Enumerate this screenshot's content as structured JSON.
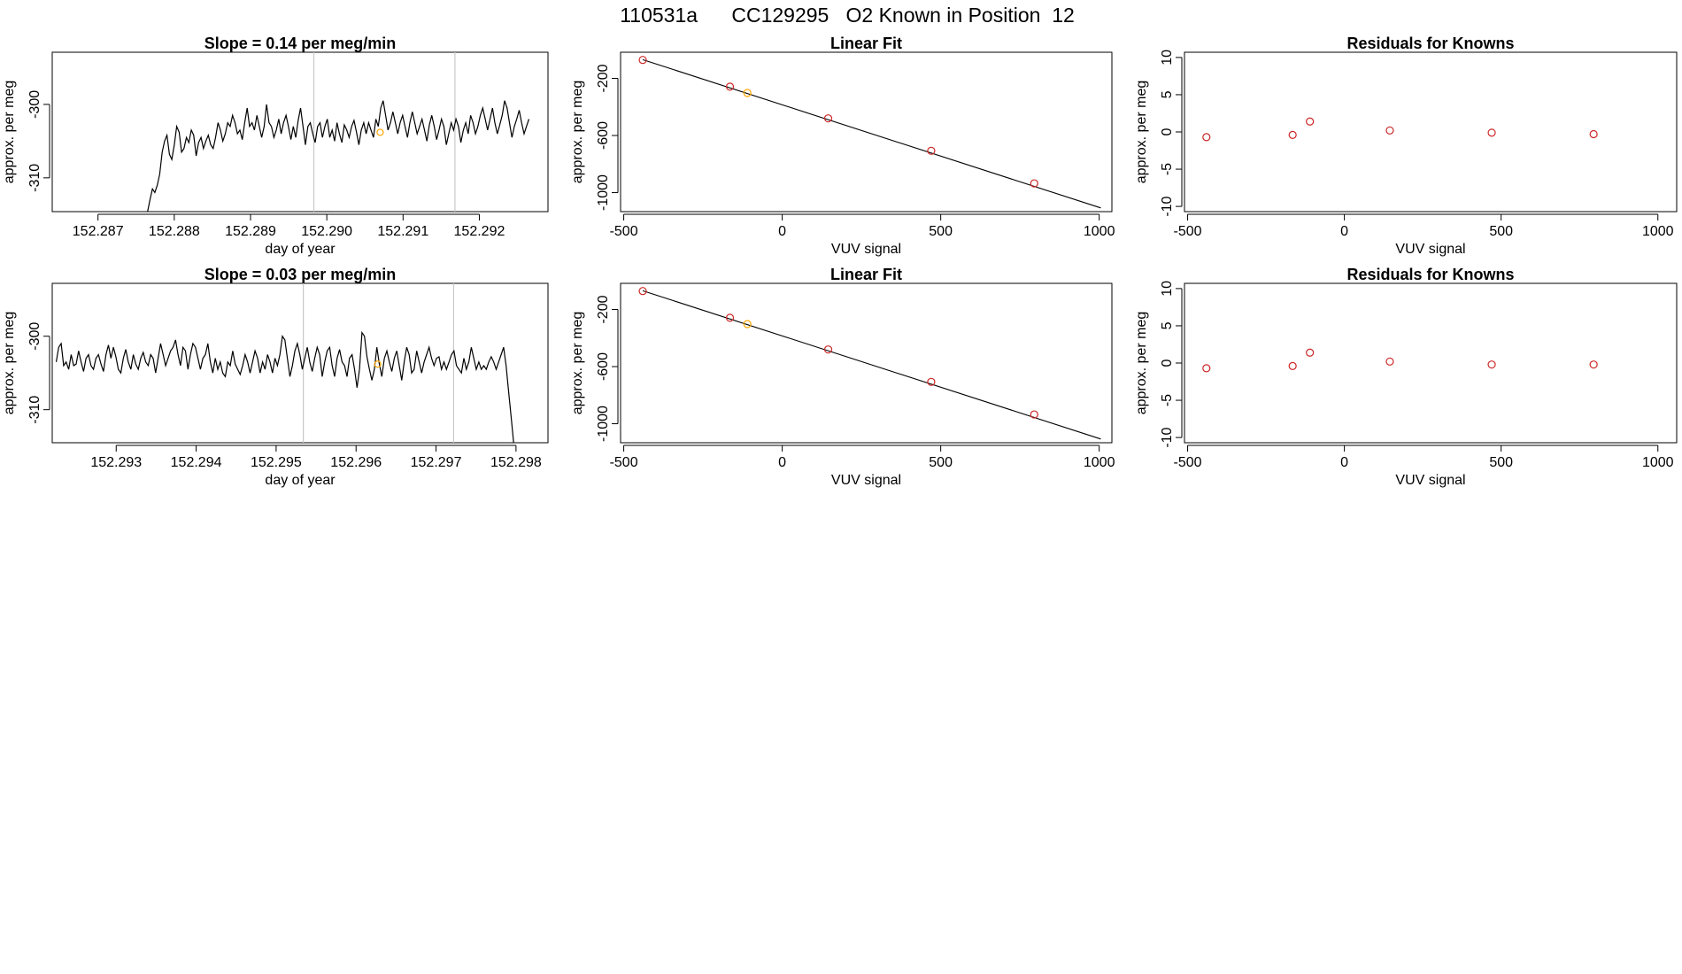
{
  "figure": {
    "title": "110531a      CC129295   O2 Known in Position  12"
  },
  "colors": {
    "line": "#000000",
    "known_point": "#cd2626",
    "highlight_point": "#ffa500",
    "vline": "#c8c8c8",
    "frame": "#000000"
  },
  "chart_data": [
    {
      "id": "timeseries-1",
      "type": "line",
      "title": "Slope =  0.14  per meg/min",
      "xlabel": "day of year",
      "ylabel": "approx. per meg",
      "xlim": [
        152.2864,
        152.2929
      ],
      "ylim": [
        -314.6,
        -292.9
      ],
      "xticks": [
        152.287,
        152.288,
        152.289,
        152.29,
        152.291,
        152.292
      ],
      "xtick_labels": [
        "152.287",
        "152.288",
        "152.289",
        "152.290",
        "152.291",
        "152.292"
      ],
      "yticks": [
        -310,
        -300
      ],
      "ytick_labels": [
        "-310",
        "-300"
      ],
      "vlines": [
        152.28983,
        152.29168
      ],
      "highlight": {
        "x": 152.2907,
        "y": -303.8
      },
      "series": [
        {
          "x_start": 152.28765,
          "x_end": 152.29265,
          "values": [
            -314.6,
            -313.0,
            -311.5,
            -312.0,
            -311.0,
            -309.5,
            -306.5,
            -305.0,
            -304.2,
            -306.8,
            -307.5,
            -305.5,
            -303.0,
            -303.8,
            -306.5,
            -306.0,
            -304.5,
            -305.2,
            -303.5,
            -304.2,
            -307.0,
            -305.2,
            -304.5,
            -306.0,
            -305.0,
            -304.2,
            -305.5,
            -306.0,
            -304.5,
            -302.5,
            -303.5,
            -305.0,
            -304.0,
            -302.5,
            -303.0,
            -301.5,
            -302.5,
            -304.0,
            -303.5,
            -304.8,
            -302.5,
            -300.5,
            -303.0,
            -302.5,
            -303.5,
            -301.5,
            -303.0,
            -304.5,
            -303.0,
            -300.0,
            -302.5,
            -303.0,
            -304.5,
            -303.5,
            -302.0,
            -304.0,
            -302.5,
            -301.5,
            -303.0,
            -304.8,
            -303.0,
            -304.5,
            -302.2,
            -300.5,
            -303.0,
            -305.5,
            -303.0,
            -302.5,
            -304.0,
            -305.2,
            -303.0,
            -302.5,
            -304.5,
            -303.0,
            -302.0,
            -304.5,
            -303.5,
            -305.0,
            -302.5,
            -304.0,
            -305.2,
            -302.8,
            -303.5,
            -304.5,
            -303.0,
            -302.2,
            -303.8,
            -305.5,
            -303.5,
            -302.5,
            -304.0,
            -302.5,
            -303.5,
            -304.5,
            -302.0,
            -303.0,
            -300.5,
            -299.5,
            -301.5,
            -303.5,
            -302.5,
            -301.0,
            -302.5,
            -304.0,
            -302.5,
            -301.5,
            -303.0,
            -304.5,
            -302.5,
            -301.0,
            -302.5,
            -304.0,
            -303.0,
            -302.0,
            -303.5,
            -305.0,
            -302.8,
            -301.5,
            -303.0,
            -304.8,
            -303.5,
            -302.0,
            -303.0,
            -305.5,
            -304.0,
            -302.5,
            -303.5,
            -302.0,
            -303.0,
            -305.2,
            -303.5,
            -302.5,
            -304.0,
            -301.5,
            -302.5,
            -304.0,
            -303.0,
            -301.5,
            -300.5,
            -302.0,
            -303.5,
            -302.0,
            -300.5,
            -302.5,
            -304.0,
            -302.8,
            -301.5,
            -299.5,
            -300.5,
            -302.5,
            -304.5,
            -303.0,
            -302.0,
            -300.8,
            -302.5,
            -304.0,
            -303.0,
            -302.0
          ]
        }
      ]
    },
    {
      "id": "linfit-1",
      "type": "scatter",
      "title": "Linear Fit",
      "xlabel": "VUV signal",
      "ylabel": "approx. per meg",
      "xlim": [
        -510,
        1040
      ],
      "ylim": [
        -1133,
        -17
      ],
      "xticks": [
        -500,
        0,
        500,
        1000
      ],
      "xtick_labels": [
        "-500",
        "0",
        "500",
        "1000"
      ],
      "yticks": [
        -1000,
        -600,
        -200
      ],
      "ytick_labels": [
        "-1000",
        "-600",
        "-200"
      ],
      "fit_line": {
        "x": [
          -440,
          1005
        ],
        "y": [
          -69,
          -1107
        ]
      },
      "points": [
        {
          "x": -440,
          "y": -71,
          "kind": "known"
        },
        {
          "x": -165,
          "y": -258,
          "kind": "known"
        },
        {
          "x": -110,
          "y": -302,
          "kind": "highlight"
        },
        {
          "x": 145,
          "y": -480,
          "kind": "known"
        },
        {
          "x": 470,
          "y": -707,
          "kind": "known"
        },
        {
          "x": 795,
          "y": -935,
          "kind": "known"
        }
      ]
    },
    {
      "id": "residuals-1",
      "type": "scatter",
      "title": "Residuals for Knowns",
      "xlabel": "VUV signal",
      "ylabel": "approx. per meg",
      "xlim": [
        -510,
        1060
      ],
      "ylim": [
        -10.7,
        10.7
      ],
      "xticks": [
        -500,
        0,
        500,
        1000
      ],
      "xtick_labels": [
        "-500",
        "0",
        "500",
        "1000"
      ],
      "yticks": [
        -10,
        -5,
        0,
        5,
        10
      ],
      "ytick_labels": [
        "-10",
        "-5",
        "0",
        "5",
        "10"
      ],
      "points": [
        {
          "x": -440,
          "y": -0.7,
          "kind": "known"
        },
        {
          "x": -165,
          "y": -0.4,
          "kind": "known"
        },
        {
          "x": -110,
          "y": 1.4,
          "kind": "known"
        },
        {
          "x": 145,
          "y": 0.2,
          "kind": "known"
        },
        {
          "x": 470,
          "y": -0.1,
          "kind": "known"
        },
        {
          "x": 795,
          "y": -0.3,
          "kind": "known"
        }
      ]
    },
    {
      "id": "timeseries-2",
      "type": "line",
      "title": "Slope =  0.03  per meg/min",
      "xlabel": "day of year",
      "ylabel": "approx. per meg",
      "xlim": [
        152.2922,
        152.2984
      ],
      "ylim": [
        -314.5,
        -292.8
      ],
      "xticks": [
        152.293,
        152.294,
        152.295,
        152.296,
        152.297,
        152.298
      ],
      "xtick_labels": [
        "152.293",
        "152.294",
        "152.295",
        "152.296",
        "152.297",
        "152.298"
      ],
      "yticks": [
        -310,
        -300
      ],
      "ytick_labels": [
        "-310",
        "-300"
      ],
      "vlines": [
        152.29534,
        152.29722
      ],
      "highlight": {
        "x": 152.29627,
        "y": -303.8
      },
      "series": [
        {
          "x_start": 152.29225,
          "x_end": 152.29797,
          "values": [
            -303.5,
            -301.5,
            -301.0,
            -304.0,
            -303.5,
            -304.5,
            -302.5,
            -304.0,
            -303.8,
            -302.0,
            -303.5,
            -304.8,
            -303.0,
            -302.5,
            -304.0,
            -304.5,
            -303.0,
            -302.5,
            -303.8,
            -304.8,
            -302.5,
            -301.2,
            -303.0,
            -301.5,
            -302.8,
            -304.5,
            -305.0,
            -303.0,
            -301.8,
            -303.5,
            -304.5,
            -302.5,
            -303.8,
            -304.5,
            -303.0,
            -302.2,
            -303.5,
            -304.0,
            -302.5,
            -303.0,
            -305.0,
            -303.0,
            -301.0,
            -302.5,
            -304.0,
            -303.0,
            -302.0,
            -301.5,
            -300.5,
            -302.5,
            -304.0,
            -301.5,
            -302.0,
            -304.5,
            -302.5,
            -301.0,
            -301.5,
            -303.0,
            -304.5,
            -303.0,
            -302.5,
            -301.0,
            -303.5,
            -305.0,
            -303.0,
            -304.5,
            -303.5,
            -305.0,
            -305.5,
            -303.5,
            -304.0,
            -302.0,
            -303.8,
            -304.5,
            -305.2,
            -304.0,
            -302.5,
            -303.5,
            -305.0,
            -303.5,
            -302.0,
            -303.0,
            -305.0,
            -303.5,
            -304.5,
            -302.5,
            -303.5,
            -305.0,
            -303.0,
            -304.0,
            -302.5,
            -300.0,
            -300.5,
            -303.0,
            -305.5,
            -304.0,
            -302.0,
            -301.0,
            -302.5,
            -304.5,
            -303.0,
            -301.5,
            -303.5,
            -304.8,
            -303.0,
            -301.5,
            -302.5,
            -305.5,
            -303.5,
            -302.0,
            -301.5,
            -304.0,
            -305.5,
            -303.0,
            -301.8,
            -303.5,
            -304.0,
            -305.5,
            -303.0,
            -302.5,
            -304.5,
            -307.0,
            -304.5,
            -299.5,
            -300.0,
            -302.8,
            -304.5,
            -306.0,
            -304.5,
            -301.5,
            -303.8,
            -305.5,
            -303.0,
            -302.0,
            -303.5,
            -304.8,
            -303.0,
            -302.0,
            -304.0,
            -306.0,
            -303.5,
            -301.5,
            -302.5,
            -305.0,
            -304.5,
            -302.0,
            -303.5,
            -305.0,
            -303.5,
            -302.5,
            -301.5,
            -303.0,
            -304.0,
            -303.0,
            -302.8,
            -304.5,
            -303.5,
            -304.5,
            -303.5,
            -302.5,
            -302.0,
            -304.0,
            -304.5,
            -305.0,
            -303.0,
            -304.5,
            -303.5,
            -301.5,
            -303.0,
            -304.5,
            -303.5,
            -304.5,
            -304.0,
            -304.5,
            -303.5,
            -302.8,
            -303.5,
            -304.5,
            -303.5,
            -302.5,
            -301.5,
            -304.0,
            -307.5,
            -311.0,
            -314.5
          ]
        }
      ]
    },
    {
      "id": "linfit-2",
      "type": "scatter",
      "title": "Linear Fit",
      "xlabel": "VUV signal",
      "ylabel": "approx. per meg",
      "xlim": [
        -510,
        1040
      ],
      "ylim": [
        -1133,
        -17
      ],
      "xticks": [
        -500,
        0,
        500,
        1000
      ],
      "xtick_labels": [
        "-500",
        "0",
        "500",
        "1000"
      ],
      "yticks": [
        -1000,
        -600,
        -200
      ],
      "ytick_labels": [
        "-1000",
        "-600",
        "-200"
      ],
      "fit_line": {
        "x": [
          -440,
          1005
        ],
        "y": [
          -69,
          -1107
        ]
      },
      "points": [
        {
          "x": -440,
          "y": -71,
          "kind": "known"
        },
        {
          "x": -165,
          "y": -258,
          "kind": "known"
        },
        {
          "x": -110,
          "y": -302,
          "kind": "highlight"
        },
        {
          "x": 145,
          "y": -480,
          "kind": "known"
        },
        {
          "x": 470,
          "y": -707,
          "kind": "known"
        },
        {
          "x": 795,
          "y": -935,
          "kind": "known"
        }
      ]
    },
    {
      "id": "residuals-2",
      "type": "scatter",
      "title": "Residuals for Knowns",
      "xlabel": "VUV signal",
      "ylabel": "approx. per meg",
      "xlim": [
        -510,
        1060
      ],
      "ylim": [
        -10.7,
        10.7
      ],
      "xticks": [
        -500,
        0,
        500,
        1000
      ],
      "xtick_labels": [
        "-500",
        "0",
        "500",
        "1000"
      ],
      "yticks": [
        -10,
        -5,
        0,
        5,
        10
      ],
      "ytick_labels": [
        "-10",
        "-5",
        "0",
        "5",
        "10"
      ],
      "points": [
        {
          "x": -440,
          "y": -0.7,
          "kind": "known"
        },
        {
          "x": -165,
          "y": -0.4,
          "kind": "known"
        },
        {
          "x": -110,
          "y": 1.4,
          "kind": "known"
        },
        {
          "x": 145,
          "y": 0.2,
          "kind": "known"
        },
        {
          "x": 470,
          "y": -0.2,
          "kind": "known"
        },
        {
          "x": 795,
          "y": -0.2,
          "kind": "known"
        }
      ]
    }
  ]
}
